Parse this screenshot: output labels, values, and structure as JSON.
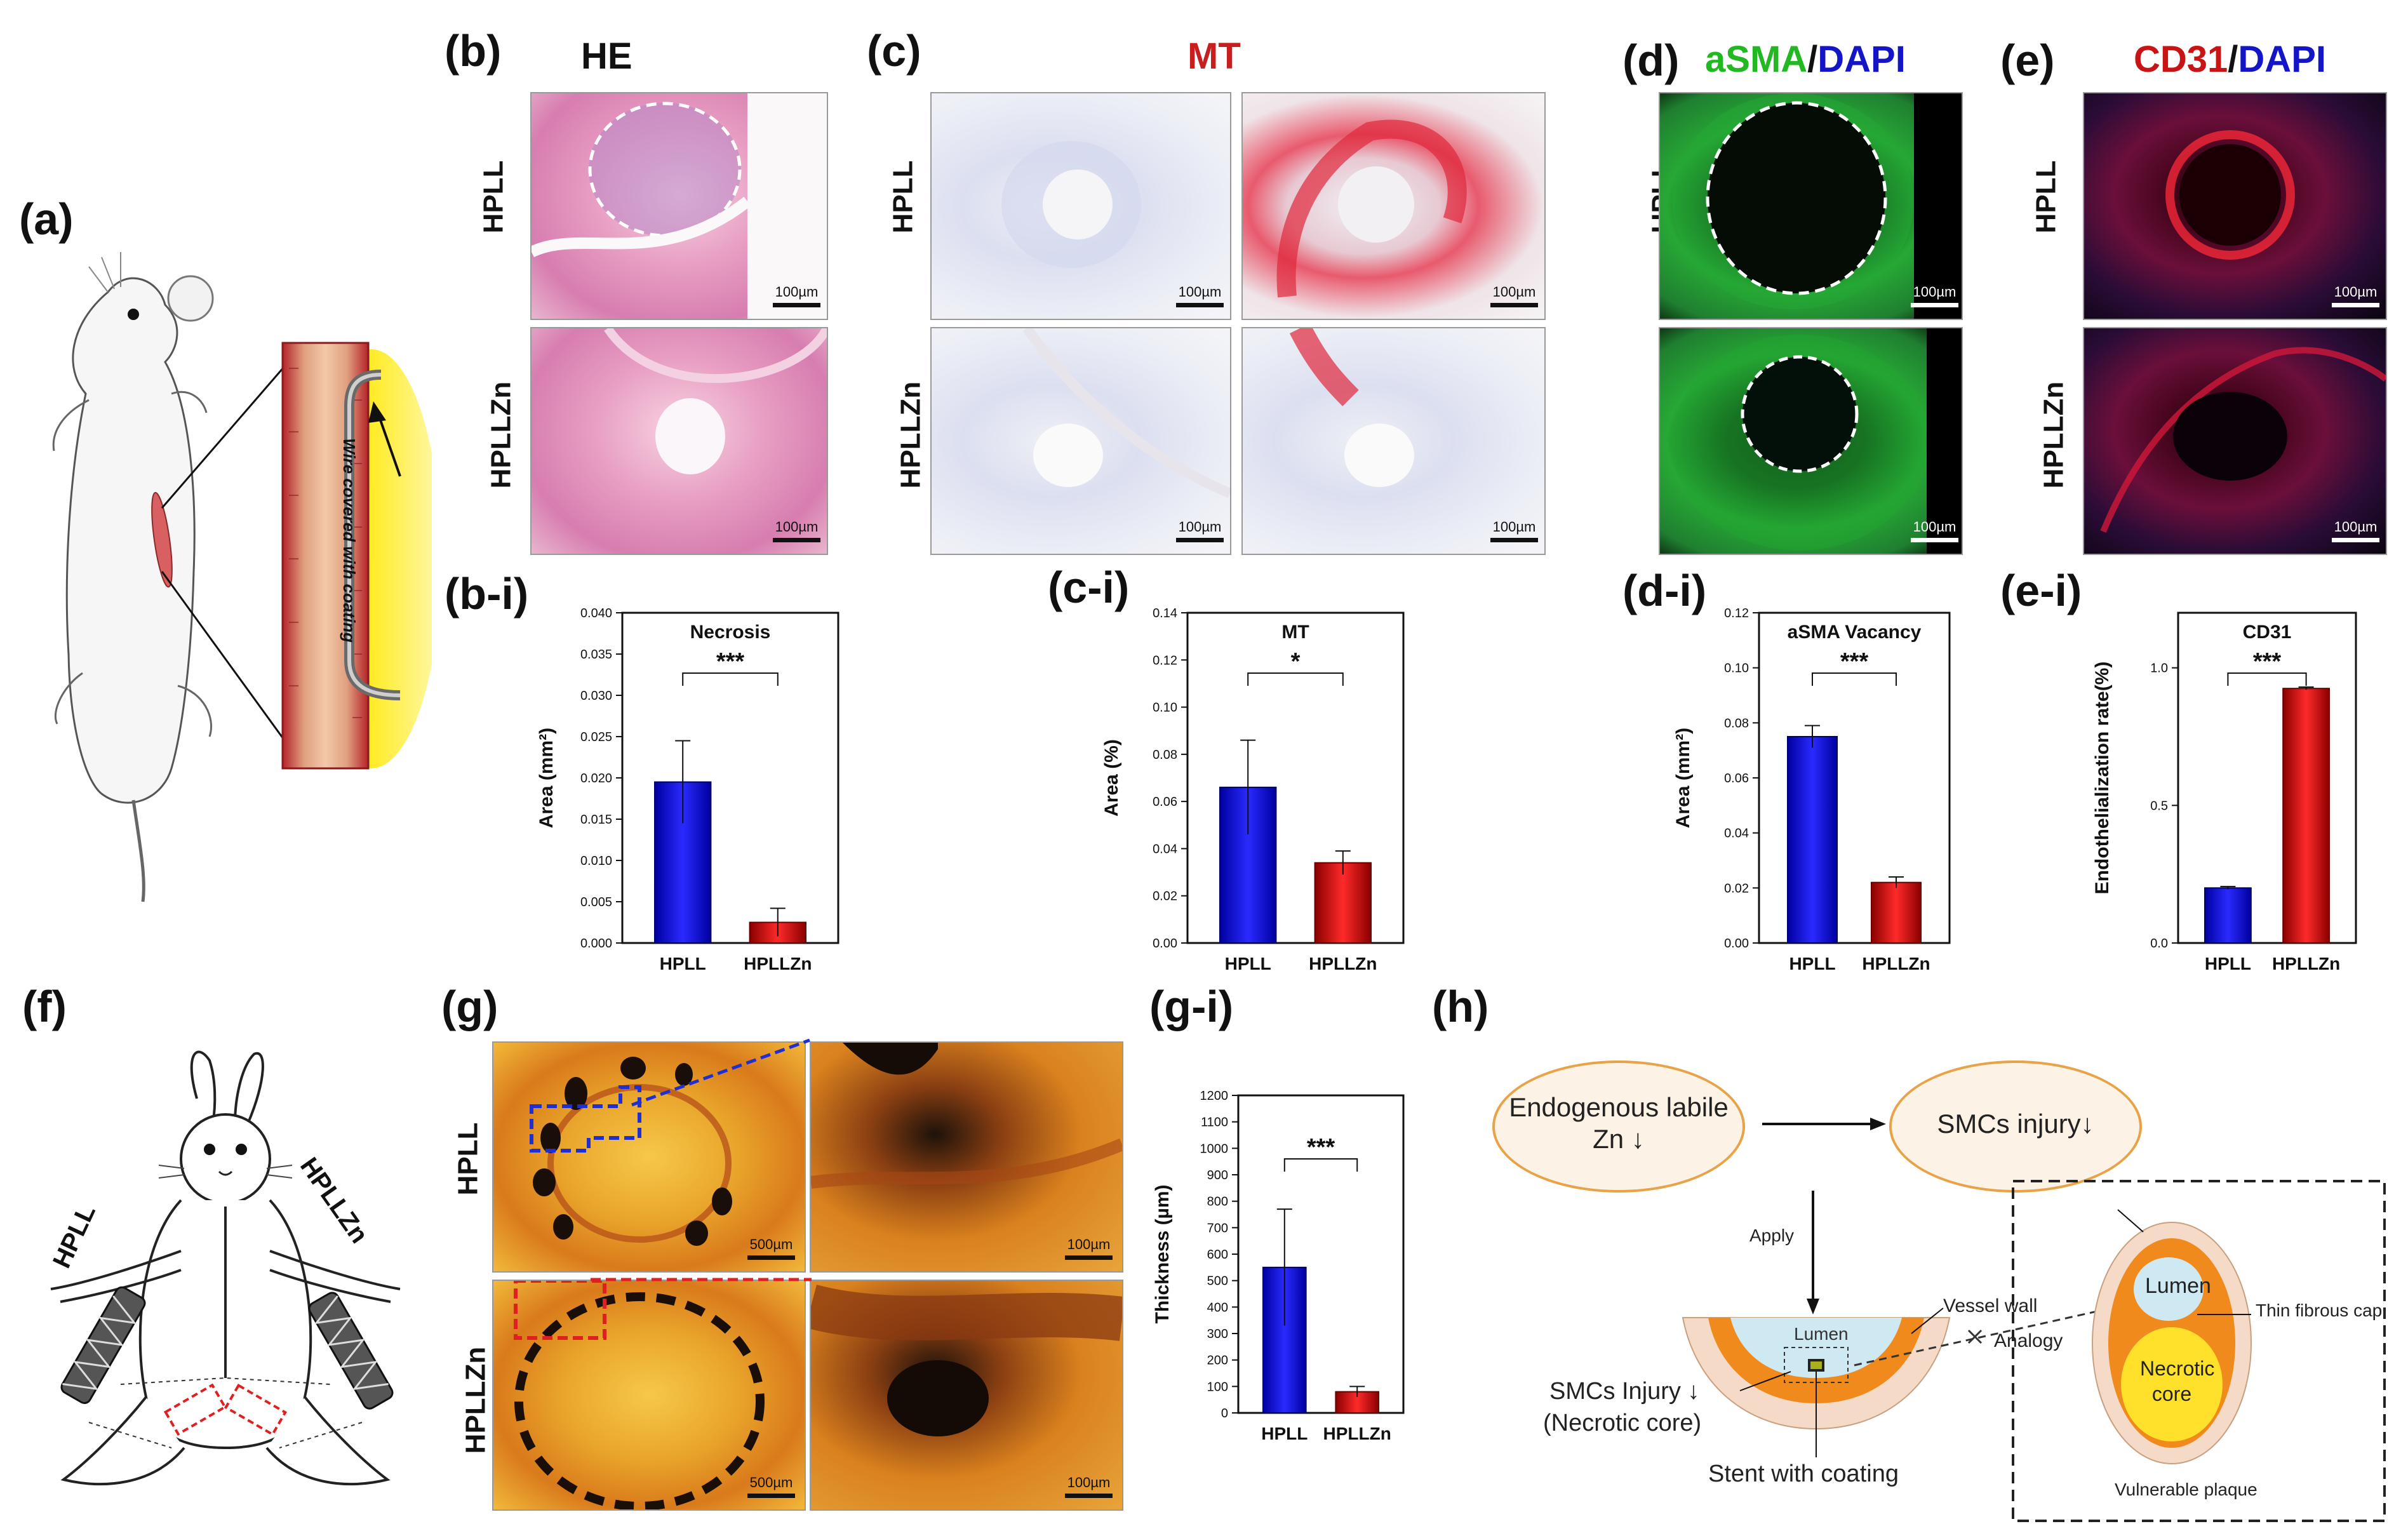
{
  "labels": {
    "a": "(a)",
    "b": "(b)",
    "c": "(c)",
    "d": "(d)",
    "e": "(e)",
    "bi": "(b-i)",
    "ci": "(c-i)",
    "di": "(d-i)",
    "ei": "(e-i)",
    "f": "(f)",
    "g": "(g)",
    "gi": "(g-i)",
    "h": "(h)"
  },
  "titles": {
    "b": "HE",
    "c": "MT",
    "d_part1": "aSMA",
    "d_sep": "/",
    "d_part2": "DAPI",
    "e_part1": "CD31",
    "e_sep": "/",
    "e_part2": "DAPI"
  },
  "rows": {
    "hpll": "HPLL",
    "hpllzn": "HPLLZn"
  },
  "scale": {
    "s100": "100µm",
    "s500": "500µm"
  },
  "panel_a": {
    "annotation": "Wire covered with coating"
  },
  "panel_f": {
    "left_label": "HPLL",
    "right_label": "HPLLZn"
  },
  "panel_h": {
    "box1": "Endogenous labile Zn ↓",
    "box2": "SMCs injury↓",
    "apply": "Apply",
    "lumen": "Lumen",
    "vessel_wall": "Vessel wall",
    "analogy": "Analogy",
    "smcs_injury": "SMCs Injury ↓",
    "necrotic_core_paren": "(Necrotic core)",
    "stent": "Stent with coating",
    "lumen2": "Lumen",
    "thin_cap": "Thin fibrous cap",
    "necrotic": "Necrotic core",
    "vulnerable": "Vulnerable plaque"
  },
  "colors": {
    "blue": "#1515c8",
    "red": "#c81414",
    "green": "#22b822",
    "mt_red": "#c81e1e"
  },
  "chart_data": [
    {
      "id": "bi",
      "type": "bar",
      "title": "Necrosis",
      "categories": [
        "HPLL",
        "HPLLZn"
      ],
      "values": [
        0.0195,
        0.0025
      ],
      "errors": [
        0.005,
        0.0017
      ],
      "ylabel": "Area (mm²)",
      "ylim": [
        0,
        0.04
      ],
      "ticks": [
        0.0,
        0.005,
        0.01,
        0.015,
        0.02,
        0.025,
        0.03,
        0.035,
        0.04
      ],
      "tick_labels": [
        "0.000",
        "0.005",
        "0.010",
        "0.015",
        "0.020",
        "0.025",
        "0.030",
        "0.035",
        "0.040"
      ],
      "significance": "***"
    },
    {
      "id": "ci",
      "type": "bar",
      "title": "MT",
      "categories": [
        "HPLL",
        "HPLLZn"
      ],
      "values": [
        0.066,
        0.034
      ],
      "errors": [
        0.02,
        0.005
      ],
      "ylabel": "Area (%)",
      "ylim": [
        0,
        0.14
      ],
      "ticks": [
        0.0,
        0.02,
        0.04,
        0.06,
        0.08,
        0.1,
        0.12,
        0.14
      ],
      "tick_labels": [
        "0.00",
        "0.02",
        "0.04",
        "0.06",
        "0.08",
        "0.10",
        "0.12",
        "0.14"
      ],
      "significance": "*"
    },
    {
      "id": "di",
      "type": "bar",
      "title": "aSMA Vacancy",
      "categories": [
        "HPLL",
        "HPLLZn"
      ],
      "values": [
        0.075,
        0.022
      ],
      "errors": [
        0.004,
        0.002
      ],
      "ylabel": "Area (mm²)",
      "ylim": [
        0,
        0.12
      ],
      "ticks": [
        0.0,
        0.02,
        0.04,
        0.06,
        0.08,
        0.1,
        0.12
      ],
      "tick_labels": [
        "0.00",
        "0.02",
        "0.04",
        "0.06",
        "0.08",
        "0.10",
        "0.12"
      ],
      "significance": "***"
    },
    {
      "id": "ei",
      "type": "bar",
      "title": "CD31",
      "categories": [
        "HPLL",
        "HPLLZn"
      ],
      "values": [
        0.2,
        0.925
      ],
      "errors": [
        0.005,
        0.005
      ],
      "ylabel": "Endothelialization rate(%)",
      "ylim": [
        0,
        1.2
      ],
      "ticks": [
        0.0,
        0.5,
        1.0
      ],
      "tick_labels": [
        "0.0",
        "0.5",
        "1.0"
      ],
      "significance": "***"
    },
    {
      "id": "gi",
      "type": "bar",
      "title": "",
      "categories": [
        "HPLL",
        "HPLLZn"
      ],
      "values": [
        550,
        80
      ],
      "errors": [
        220,
        20
      ],
      "ylabel": "Thickness (µm)",
      "ylim": [
        0,
        1200
      ],
      "ticks": [
        0,
        100,
        200,
        300,
        400,
        500,
        600,
        700,
        800,
        900,
        1000,
        1100,
        1200
      ],
      "tick_labels": [
        "0",
        "100",
        "200",
        "300",
        "400",
        "500",
        "600",
        "700",
        "800",
        "900",
        "1000",
        "1100",
        "1200"
      ],
      "significance": "***"
    }
  ]
}
